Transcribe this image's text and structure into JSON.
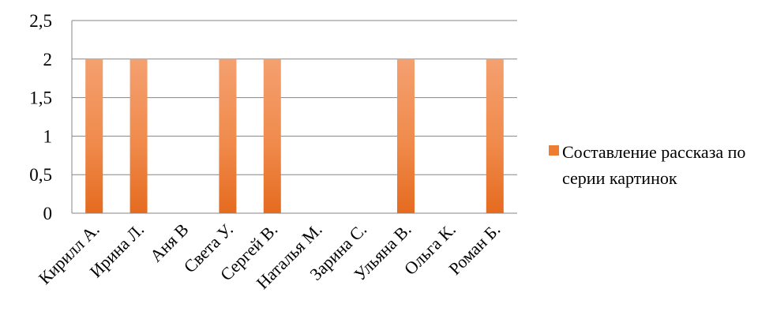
{
  "chart_data": {
    "type": "bar",
    "categories": [
      "Кирилл А.",
      "Ирина Л.",
      "Аня В",
      "Света У.",
      "Сергей В.",
      "Наталья М.",
      "Зарина С.",
      "Ульяна  В.",
      "Ольга К.",
      "Роман Б."
    ],
    "series": [
      {
        "name": "Составление рассказа по серии картинок",
        "values": [
          2,
          2,
          0,
          2,
          2,
          0,
          0,
          2,
          0,
          2
        ],
        "color": "#ED7D31"
      }
    ],
    "yticks": [
      "0",
      "0,5",
      "1",
      "1,5",
      "2",
      "2,5"
    ],
    "ylim": [
      0,
      2.5
    ],
    "grid": true,
    "legend_position": "right"
  }
}
